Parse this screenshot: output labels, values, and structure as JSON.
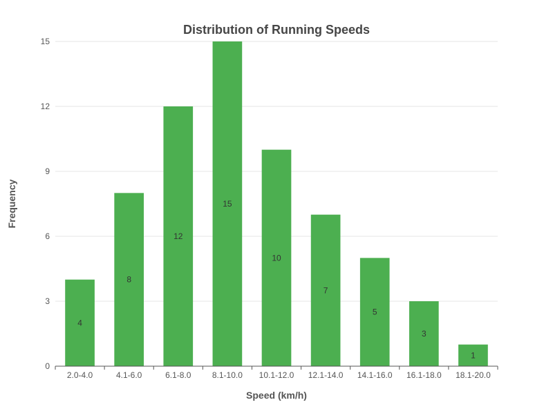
{
  "colors": {
    "bar": "#4caf50",
    "grid": "#e6e6e6",
    "axis": "#555555",
    "text": "#555555",
    "title": "#464646",
    "label": "#333333"
  },
  "chart_data": {
    "type": "bar",
    "title": "Distribution of Running Speeds",
    "xlabel": "Speed (km/h)",
    "ylabel": "Frequency",
    "categories": [
      "2.0-4.0",
      "4.1-6.0",
      "6.1-8.0",
      "8.1-10.0",
      "10.1-12.0",
      "12.1-14.0",
      "14.1-16.0",
      "16.1-18.0",
      "18.1-20.0"
    ],
    "values": [
      4,
      8,
      12,
      15,
      10,
      7,
      5,
      3,
      1
    ],
    "ylim": [
      0,
      15
    ],
    "yticks": [
      0,
      3,
      6,
      9,
      12,
      15
    ],
    "grid": true,
    "legend": "none",
    "data_labels": "inside-center"
  }
}
